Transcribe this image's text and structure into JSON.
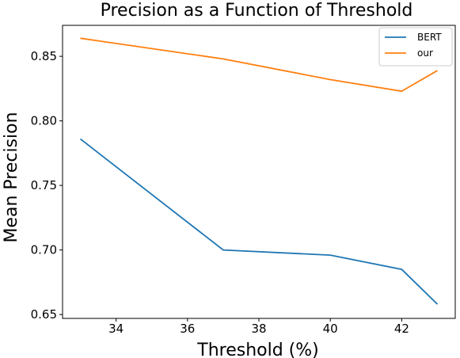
{
  "chart_data": {
    "type": "line",
    "title": "Precision as a Function of Threshold",
    "xlabel": "Threshold (%)",
    "ylabel": "Mean Precision",
    "xlim": [
      32.5,
      43.5
    ],
    "ylim": [
      0.647,
      0.874
    ],
    "xticks": [
      34,
      36,
      38,
      40,
      42
    ],
    "yticks": [
      0.65,
      0.7,
      0.75,
      0.8,
      0.85
    ],
    "x": [
      33,
      37,
      40,
      42,
      43
    ],
    "series": [
      {
        "name": "BERT",
        "color": "#1f77b4",
        "values": [
          0.786,
          0.7,
          0.696,
          0.685,
          0.658
        ]
      },
      {
        "name": "our",
        "color": "#ff7f0e",
        "values": [
          0.864,
          0.848,
          0.832,
          0.823,
          0.839
        ]
      }
    ],
    "legend": "top-right",
    "grid": false
  }
}
